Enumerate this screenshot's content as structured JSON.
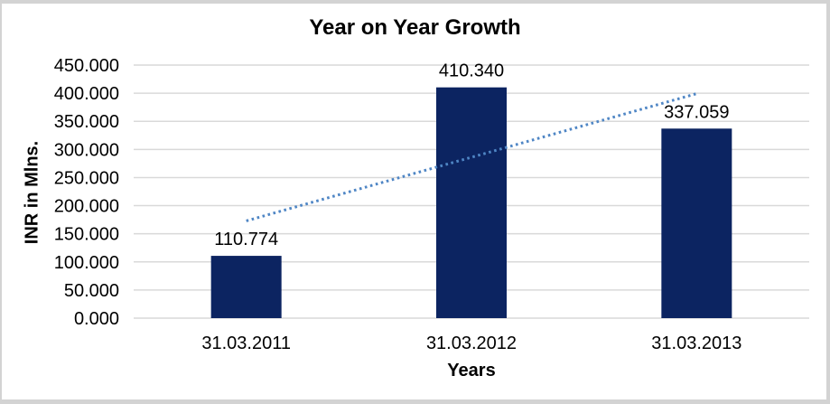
{
  "chart_data": {
    "type": "bar",
    "title": "Year on Year Growth",
    "categories": [
      "31.03.2011",
      "31.03.2012",
      "31.03.2013"
    ],
    "values": [
      110.774,
      410.34,
      337.059
    ],
    "data_labels": [
      "110.774",
      "410.340",
      "337.059"
    ],
    "xlabel": "Years",
    "ylabel": "INR in Mlns.",
    "ylim": [
      0,
      450
    ],
    "ytick_step": 50,
    "ytick_labels": [
      "450.000",
      "400.000",
      "350.000",
      "300.000",
      "250.000",
      "200.000",
      "150.000",
      "100.000",
      "50.000",
      "0.000"
    ],
    "grid": true,
    "legend": "none",
    "trendline": {
      "style": "dotted",
      "start_value": 172.9,
      "end_value": 399.2
    },
    "colors": {
      "bar": "#0c2461",
      "trendline": "#4f86c5",
      "gridline": "#d9d9d9",
      "text": "#000000",
      "frame_border": "#d3d3d3",
      "background": "#ffffff"
    }
  }
}
